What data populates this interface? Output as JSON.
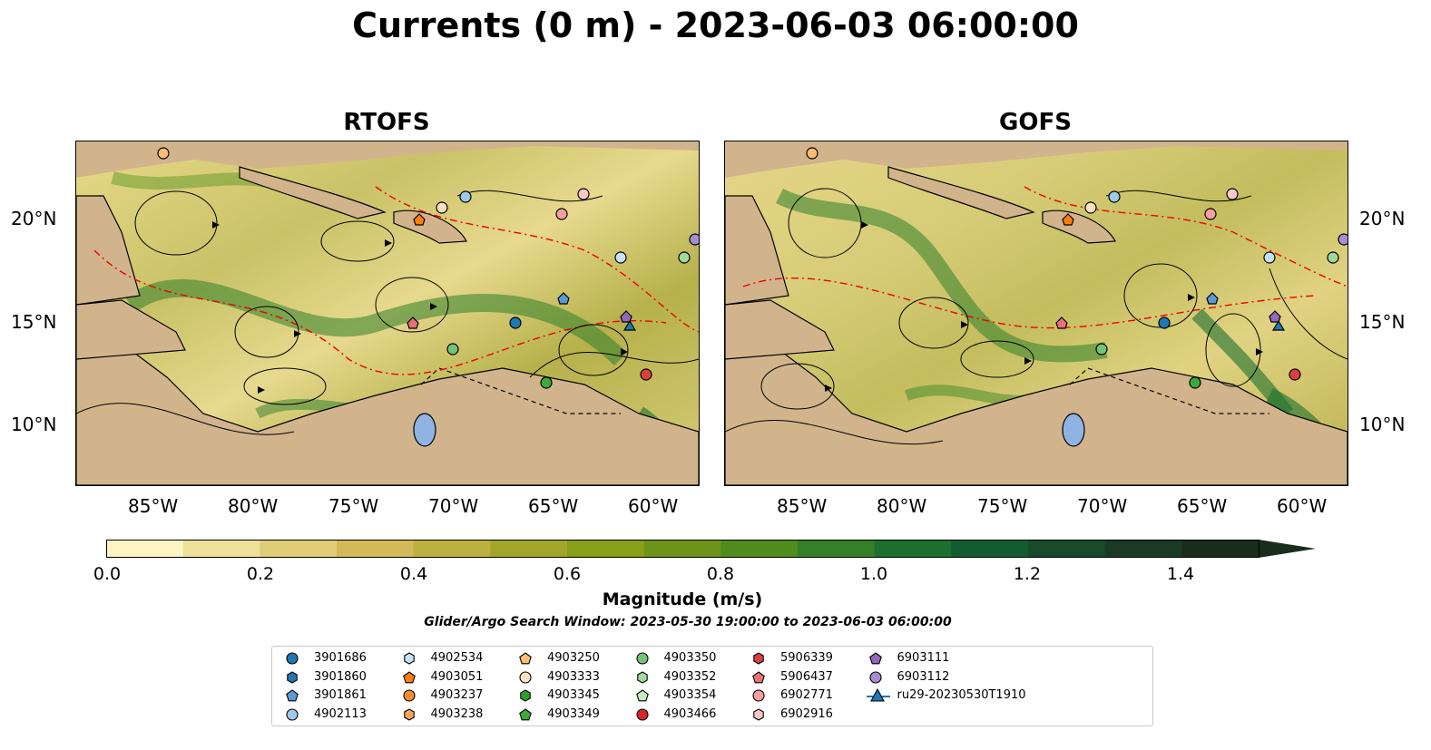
{
  "title": "Currents (0 m) - 2023-06-03 06:00:00",
  "panels": [
    {
      "title": "RTOFS"
    },
    {
      "title": "GOFS"
    }
  ],
  "lat_ticks": [
    "20°N",
    "15°N",
    "10°N"
  ],
  "lon_ticks": [
    "85°W",
    "80°W",
    "75°W",
    "70°W",
    "65°W",
    "60°W"
  ],
  "colorbar": {
    "label": "Magnitude (m/s)",
    "ticks": [
      "0.0",
      "0.2",
      "0.4",
      "0.6",
      "0.8",
      "1.0",
      "1.2",
      "1.4"
    ],
    "colors": [
      "#fbf5c3",
      "#ede199",
      "#e0cd78",
      "#d2ba58",
      "#bcb03f",
      "#a3a52a",
      "#879f19",
      "#6c9418",
      "#508b1e",
      "#357f26",
      "#1c6f2e",
      "#125c30",
      "#184a2c",
      "#1b3a24",
      "#1a2c1c"
    ]
  },
  "search_window": "Glider/Argo Search Window: 2023-05-30 19:00:00 to 2023-06-03 06:00:00",
  "legend": [
    {
      "label": "3901686",
      "marker": "circle",
      "color": "#1f77b4"
    },
    {
      "label": "3901860",
      "marker": "hexagon",
      "color": "#1f77b4"
    },
    {
      "label": "3901861",
      "marker": "pentagon",
      "color": "#5a9bd4"
    },
    {
      "label": "4902113",
      "marker": "circle",
      "color": "#9ecae9"
    },
    {
      "label": "4902534",
      "marker": "hexagon",
      "color": "#c6e2f5"
    },
    {
      "label": "4903051",
      "marker": "pentagon",
      "color": "#ff7f0e"
    },
    {
      "label": "4903237",
      "marker": "circle",
      "color": "#ff8c2a"
    },
    {
      "label": "4903238",
      "marker": "hexagon",
      "color": "#ffa55a"
    },
    {
      "label": "4903250",
      "marker": "pentagon",
      "color": "#ffbb78"
    },
    {
      "label": "4903333",
      "marker": "circle",
      "color": "#ffe0c0"
    },
    {
      "label": "4903345",
      "marker": "hexagon",
      "color": "#2ca02c"
    },
    {
      "label": "4903349",
      "marker": "pentagon",
      "color": "#3aab3a"
    },
    {
      "label": "4903350",
      "marker": "circle",
      "color": "#74c476"
    },
    {
      "label": "4903352",
      "marker": "hexagon",
      "color": "#a1d99b"
    },
    {
      "label": "4903354",
      "marker": "pentagon",
      "color": "#c7e9c0"
    },
    {
      "label": "4903466",
      "marker": "circle",
      "color": "#d62728"
    },
    {
      "label": "5906339",
      "marker": "hexagon",
      "color": "#d9403e"
    },
    {
      "label": "5906437",
      "marker": "pentagon",
      "color": "#e8707a"
    },
    {
      "label": "6902771",
      "marker": "circle",
      "color": "#f4a0a0"
    },
    {
      "label": "6902916",
      "marker": "hexagon",
      "color": "#fbc8c8"
    },
    {
      "label": "6903111",
      "marker": "pentagon",
      "color": "#9467bd"
    },
    {
      "label": "6903112",
      "marker": "circle",
      "color": "#a78bd4"
    },
    {
      "label": "ru29-20230530T1910",
      "marker": "triangle-line",
      "color": "#1f77b4"
    }
  ]
}
